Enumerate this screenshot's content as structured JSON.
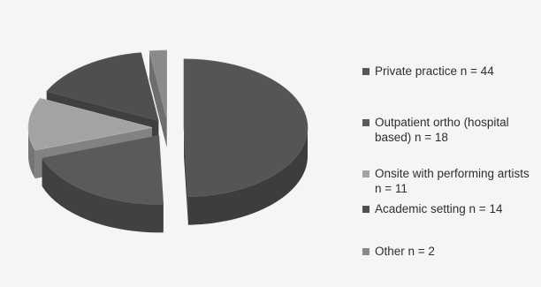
{
  "chart_data": {
    "type": "pie",
    "style": "3d-exploded",
    "title": "",
    "slices": [
      {
        "label": "Private practice n = 44",
        "value": 44,
        "color": "#555555"
      },
      {
        "label": "Outpatient ortho (hospital based) n = 18",
        "value": 18,
        "color": "#5a5a5a"
      },
      {
        "label": "Onsite with performing artists n = 11",
        "value": 11,
        "color": "#a3a3a3"
      },
      {
        "label": "Academic setting n = 14",
        "value": 14,
        "color": "#4f4f4f"
      },
      {
        "label": "Other n = 2",
        "value": 2,
        "color": "#8a8a8a"
      }
    ],
    "legend_position": "right"
  }
}
